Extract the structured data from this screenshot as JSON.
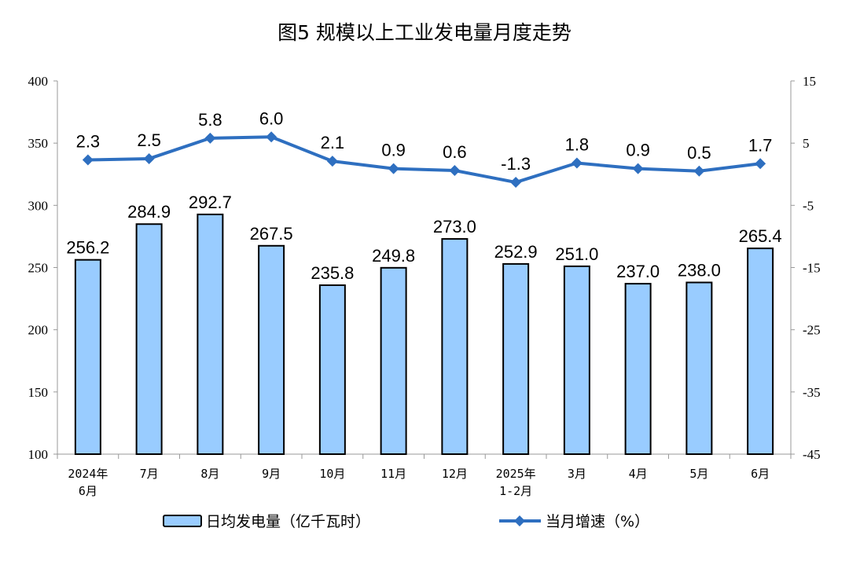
{
  "chart_data": {
    "type": "bar",
    "title": "图5  规模以上工业发电量月度走势",
    "categories": [
      [
        "2024年",
        "6月"
      ],
      [
        "7月"
      ],
      [
        "8月"
      ],
      [
        "9月"
      ],
      [
        "10月"
      ],
      [
        "11月"
      ],
      [
        "12月"
      ],
      [
        "2025年",
        "1-2月"
      ],
      [
        "3月"
      ],
      [
        "4月"
      ],
      [
        "5月"
      ],
      [
        "6月"
      ]
    ],
    "series": [
      {
        "name": "日均发电量（亿千瓦时）",
        "type": "bar",
        "axis": "left",
        "color": "#99CCFF",
        "values": [
          256.2,
          284.9,
          292.7,
          267.5,
          235.8,
          249.8,
          273.0,
          252.9,
          251.0,
          237.0,
          238.0,
          265.4
        ],
        "labels": [
          "256.2",
          "284.9",
          "292.7",
          "267.5",
          "235.8",
          "249.8",
          "273.0",
          "252.9",
          "251.0",
          "237.0",
          "238.0",
          "265.4"
        ]
      },
      {
        "name": "当月增速（%）",
        "type": "line",
        "axis": "right",
        "color": "#2E6FC0",
        "values": [
          2.3,
          2.5,
          5.8,
          6.0,
          2.1,
          0.9,
          0.6,
          -1.3,
          1.8,
          0.9,
          0.5,
          1.7
        ],
        "labels": [
          "2.3",
          "2.5",
          "5.8",
          "6.0",
          "2.1",
          "0.9",
          "0.6",
          "-1.3",
          "1.8",
          "0.9",
          "0.5",
          "1.7"
        ]
      }
    ],
    "ylim_left": [
      100,
      400
    ],
    "yticks_left": [
      "400",
      "350",
      "300",
      "250",
      "200",
      "150",
      "100"
    ],
    "ylim_right": [
      -45,
      15
    ],
    "yticks_right": [
      "15",
      "5",
      "-5",
      "-15",
      "-25",
      "-35",
      "-45"
    ],
    "grid": false,
    "legend": "bottom"
  }
}
